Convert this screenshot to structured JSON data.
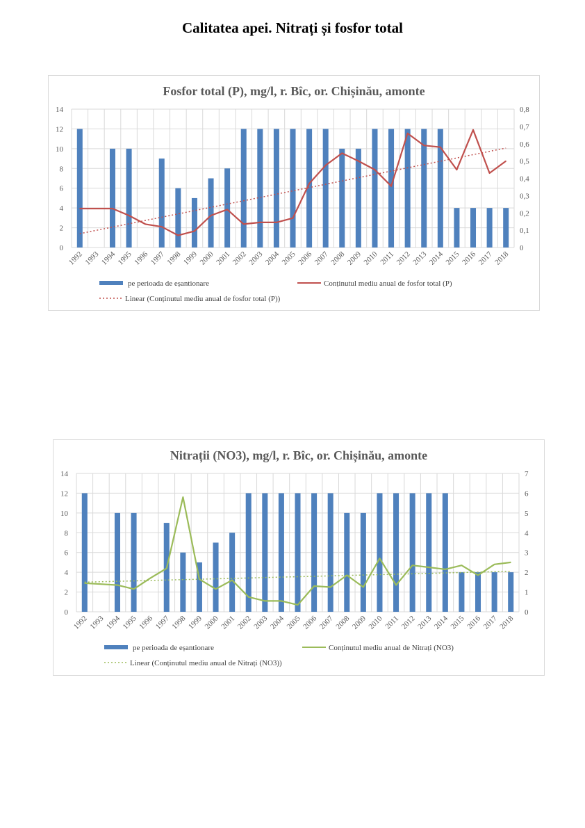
{
  "page": {
    "title": "Calitatea apei. Nitrați și fosfor total"
  },
  "chart_data": [
    {
      "type": "bar+line",
      "title": "Fosfor total (P), mg/l, r. Bîc, or. Chișinău, amonte",
      "categories": [
        "1992",
        "1993",
        "1994",
        "1995",
        "1996",
        "1997",
        "1998",
        "1999",
        "2000",
        "2001",
        "2002",
        "2003",
        "2004",
        "2005",
        "2006",
        "2007",
        "2008",
        "2009",
        "2010",
        "2011",
        "2012",
        "2013",
        "2014",
        "2015",
        "2016",
        "2017",
        "2018"
      ],
      "y_left": {
        "min": 0,
        "max": 14,
        "step": 2,
        "ticks": [
          "0",
          "2",
          "4",
          "6",
          "8",
          "10",
          "12",
          "14"
        ]
      },
      "y_right": {
        "min": 0,
        "max": 0.8,
        "step": 0.1,
        "ticks": [
          "0",
          "0,1",
          "0,2",
          "0,3",
          "0,4",
          "0,5",
          "0,6",
          "0,7",
          "0,8"
        ]
      },
      "bar_series": {
        "name": "pe perioada de eșantionare",
        "color": "#4f81bd",
        "values": [
          12,
          null,
          10,
          10,
          null,
          9,
          6,
          5,
          7,
          8,
          12,
          12,
          12,
          12,
          12,
          12,
          10,
          10,
          12,
          12,
          12,
          12,
          12,
          4,
          4,
          4,
          4
        ]
      },
      "line_series": {
        "name": "Conținutul mediu anual de fosfor total (P)",
        "color": "#c0504d",
        "values": [
          0.225,
          0.225,
          0.225,
          0.185,
          0.135,
          0.12,
          0.07,
          0.095,
          0.185,
          0.22,
          0.135,
          0.145,
          0.145,
          0.17,
          0.37,
          0.475,
          0.545,
          0.5,
          0.45,
          0.355,
          0.66,
          0.59,
          0.58,
          0.45,
          0.68,
          0.43,
          0.5
        ]
      },
      "trend": {
        "name": "Linear (Conținutul mediu anual de fosfor total (P))",
        "color": "#c0504d",
        "start": 0.08,
        "end": 0.575
      }
    },
    {
      "type": "bar+line",
      "title": "Nitrații (NO3), mg/l, r. Bîc, or. Chișinău, amonte",
      "categories": [
        "1992",
        "1993",
        "1994",
        "1995",
        "1996",
        "1997",
        "1998",
        "1999",
        "2000",
        "2001",
        "2002",
        "2003",
        "2004",
        "2005",
        "2006",
        "2007",
        "2008",
        "2009",
        "2010",
        "2011",
        "2012",
        "2013",
        "2014",
        "2015",
        "2016",
        "2017",
        "2018"
      ],
      "y_left": {
        "min": 0,
        "max": 14,
        "step": 2,
        "ticks": [
          "0",
          "2",
          "4",
          "6",
          "8",
          "10",
          "12",
          "14"
        ]
      },
      "y_right": {
        "min": 0,
        "max": 7,
        "step": 1,
        "ticks": [
          "0",
          "1",
          "2",
          "3",
          "4",
          "5",
          "6",
          "7"
        ]
      },
      "bar_series": {
        "name": "pe perioada de eșantionare",
        "color": "#4f81bd",
        "values": [
          12,
          null,
          10,
          10,
          null,
          9,
          6,
          5,
          7,
          8,
          12,
          12,
          12,
          12,
          12,
          12,
          10,
          10,
          12,
          12,
          12,
          12,
          12,
          4,
          4,
          4,
          4
        ]
      },
      "line_series": {
        "name": "Conținutul mediu anual de Nitrați (NO3)",
        "color": "#9bbb59",
        "values": [
          1.45,
          1.4,
          1.35,
          1.15,
          1.7,
          2.2,
          5.8,
          1.65,
          1.15,
          1.6,
          0.75,
          0.55,
          0.55,
          0.35,
          1.3,
          1.25,
          1.85,
          1.25,
          2.7,
          1.35,
          2.35,
          2.25,
          2.15,
          2.35,
          1.85,
          2.4,
          2.5
        ]
      },
      "trend": {
        "name": "Linear (Conținutul mediu anual de Nitrați (NO3))",
        "color": "#9bbb59",
        "start": 1.5,
        "end": 2.05
      }
    }
  ]
}
